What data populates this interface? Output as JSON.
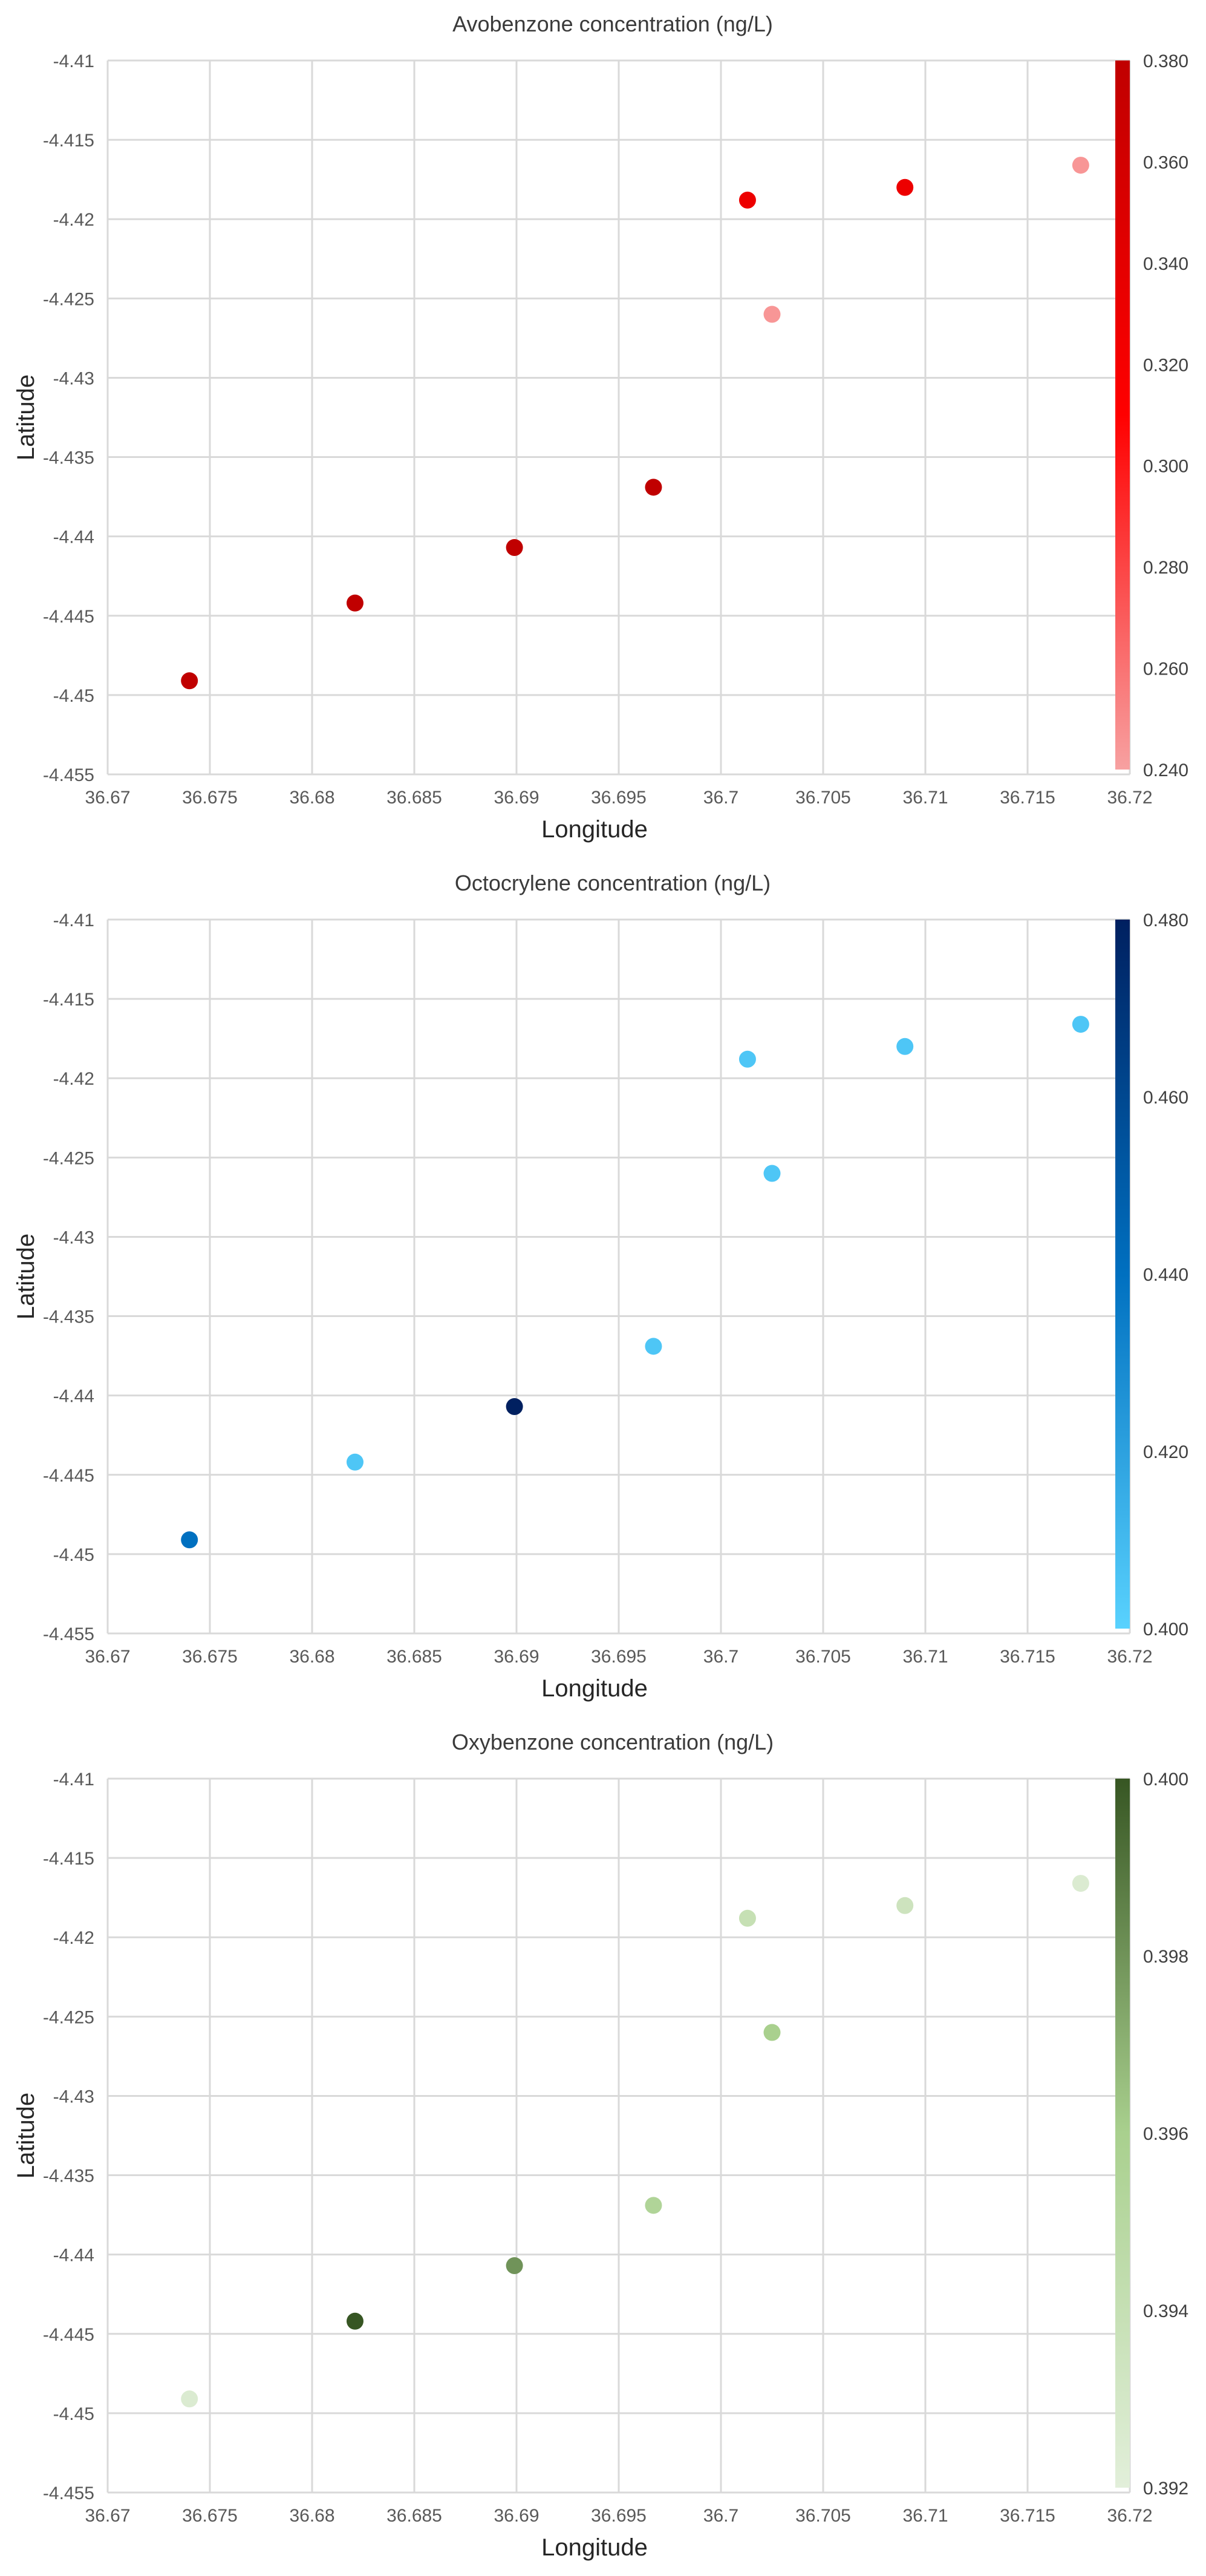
{
  "chart_data": [
    {
      "type": "scatter",
      "title": "Avobenzone concentration (ng/L)",
      "xlabel": "Longitude",
      "ylabel": "Latitude",
      "xlim": [
        36.67,
        36.72
      ],
      "ylim": [
        -4.455,
        -4.41
      ],
      "x_ticks": [
        "36.67",
        "36.675",
        "36.68",
        "36.685",
        "36.69",
        "36.695",
        "36.7",
        "36.705",
        "36.71",
        "36.715",
        "36.72"
      ],
      "y_ticks": [
        "-4.41",
        "-4.415",
        "-4.42",
        "-4.425",
        "-4.43",
        "-4.435",
        "-4.44",
        "-4.445",
        "-4.45",
        "-4.455"
      ],
      "grid": true,
      "colorbar": {
        "range": [
          0.24,
          0.38
        ],
        "ticks": [
          "0.380",
          "0.360",
          "0.340",
          "0.320",
          "0.300",
          "0.280",
          "0.260",
          "0.240"
        ],
        "colors": [
          "#f7a1a1",
          "#ff0000",
          "#c00000"
        ]
      },
      "points": [
        {
          "x": 36.674,
          "y": -4.4491,
          "value": 0.38
        },
        {
          "x": 36.6821,
          "y": -4.4442,
          "value": 0.38
        },
        {
          "x": 36.6899,
          "y": -4.4407,
          "value": 0.38
        },
        {
          "x": 36.6967,
          "y": -4.4369,
          "value": 0.38
        },
        {
          "x": 36.7013,
          "y": -4.4188,
          "value": 0.33
        },
        {
          "x": 36.7025,
          "y": -4.426,
          "value": 0.245
        },
        {
          "x": 36.709,
          "y": -4.418,
          "value": 0.33
        },
        {
          "x": 36.7176,
          "y": -4.4166,
          "value": 0.245
        }
      ]
    },
    {
      "type": "scatter",
      "title": "Octocrylene concentration (ng/L)",
      "xlabel": "Longitude",
      "ylabel": "Latitude",
      "xlim": [
        36.67,
        36.72
      ],
      "ylim": [
        -4.455,
        -4.41
      ],
      "x_ticks": [
        "36.67",
        "36.675",
        "36.68",
        "36.685",
        "36.69",
        "36.695",
        "36.7",
        "36.705",
        "36.71",
        "36.715",
        "36.72"
      ],
      "y_ticks": [
        "-4.41",
        "-4.415",
        "-4.42",
        "-4.425",
        "-4.43",
        "-4.435",
        "-4.44",
        "-4.445",
        "-4.45",
        "-4.455"
      ],
      "grid": true,
      "colorbar": {
        "range": [
          0.4,
          0.48
        ],
        "ticks": [
          "0.480",
          "0.460",
          "0.440",
          "0.420",
          "0.400"
        ],
        "colors": [
          "#59d2fe",
          "#0070c0",
          "#002060"
        ]
      },
      "points": [
        {
          "x": 36.674,
          "y": -4.4491,
          "value": 0.44
        },
        {
          "x": 36.6821,
          "y": -4.4442,
          "value": 0.405
        },
        {
          "x": 36.6899,
          "y": -4.4407,
          "value": 0.48
        },
        {
          "x": 36.6967,
          "y": -4.4369,
          "value": 0.405
        },
        {
          "x": 36.7013,
          "y": -4.4188,
          "value": 0.405
        },
        {
          "x": 36.7025,
          "y": -4.426,
          "value": 0.405
        },
        {
          "x": 36.709,
          "y": -4.418,
          "value": 0.405
        },
        {
          "x": 36.7176,
          "y": -4.4166,
          "value": 0.405
        }
      ]
    },
    {
      "type": "scatter",
      "title": "Oxybenzone concentration (ng/L)",
      "xlabel": "Longitude",
      "ylabel": "Latitude",
      "xlim": [
        36.67,
        36.72
      ],
      "ylim": [
        -4.455,
        -4.41
      ],
      "x_ticks": [
        "36.67",
        "36.675",
        "36.68",
        "36.685",
        "36.69",
        "36.695",
        "36.7",
        "36.705",
        "36.71",
        "36.715",
        "36.72"
      ],
      "y_ticks": [
        "-4.41",
        "-4.415",
        "-4.42",
        "-4.425",
        "-4.43",
        "-4.435",
        "-4.44",
        "-4.445",
        "-4.45",
        "-4.455"
      ],
      "grid": true,
      "colorbar": {
        "range": [
          0.392,
          0.4
        ],
        "ticks": [
          "0.400",
          "0.398",
          "0.396",
          "0.394",
          "0.392"
        ],
        "colors": [
          "#e2efda",
          "#a9d08e",
          "#375623"
        ]
      },
      "points": [
        {
          "x": 36.674,
          "y": -4.4491,
          "value": 0.3925
        },
        {
          "x": 36.6821,
          "y": -4.4442,
          "value": 0.4
        },
        {
          "x": 36.6899,
          "y": -4.4407,
          "value": 0.398
        },
        {
          "x": 36.6967,
          "y": -4.4369,
          "value": 0.3955
        },
        {
          "x": 36.7013,
          "y": -4.4188,
          "value": 0.394
        },
        {
          "x": 36.7025,
          "y": -4.426,
          "value": 0.396
        },
        {
          "x": 36.709,
          "y": -4.418,
          "value": 0.3935
        },
        {
          "x": 36.7176,
          "y": -4.4166,
          "value": 0.3925
        }
      ]
    }
  ]
}
